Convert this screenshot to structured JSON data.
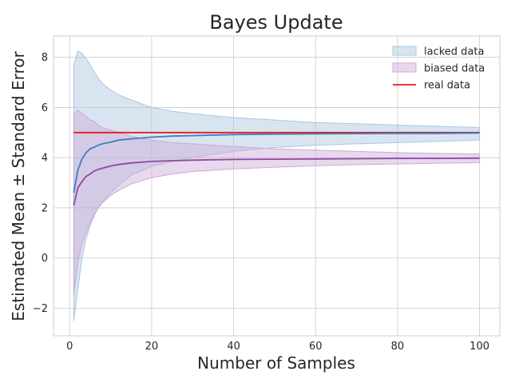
{
  "chart_data": {
    "type": "line",
    "title": "Bayes Update",
    "xlabel": "Number of Samples",
    "ylabel": "Estimated Mean ± Standard Error",
    "xlim": [
      -3.95,
      104.95
    ],
    "ylim": [
      -3.1,
      8.85
    ],
    "xticks": [
      0,
      20,
      40,
      60,
      80,
      100
    ],
    "yticks": [
      -2,
      0,
      2,
      4,
      6,
      8
    ],
    "grid": true,
    "legend_position": "top-right",
    "bands": [
      {
        "name": "lacked data",
        "color": "#a9c6df",
        "x": [
          1,
          2,
          3,
          4,
          5,
          6,
          7,
          8,
          10,
          12,
          15,
          20,
          25,
          30,
          40,
          50,
          60,
          70,
          80,
          90,
          100
        ],
        "upper": [
          7.7,
          8.25,
          8.15,
          7.95,
          7.7,
          7.4,
          7.15,
          6.95,
          6.7,
          6.5,
          6.3,
          6.0,
          5.85,
          5.75,
          5.6,
          5.5,
          5.4,
          5.35,
          5.3,
          5.25,
          5.2
        ],
        "lower": [
          -2.5,
          -1.25,
          0.0,
          0.75,
          1.3,
          1.7,
          2.0,
          2.25,
          2.6,
          2.9,
          3.3,
          3.65,
          3.85,
          4.0,
          4.25,
          4.4,
          4.5,
          4.55,
          4.6,
          4.65,
          4.7
        ]
      },
      {
        "name": "biased data",
        "color": "#cfa8d8",
        "x": [
          1,
          2,
          3,
          4,
          5,
          6,
          7,
          8,
          10,
          12,
          15,
          20,
          25,
          30,
          40,
          50,
          60,
          70,
          80,
          90,
          100
        ],
        "upper": [
          5.75,
          5.9,
          5.75,
          5.65,
          5.5,
          5.45,
          5.3,
          5.2,
          5.1,
          5.0,
          4.85,
          4.7,
          4.6,
          4.55,
          4.45,
          4.35,
          4.3,
          4.25,
          4.2,
          4.17,
          4.15
        ],
        "lower": [
          -1.5,
          -0.15,
          0.55,
          1.0,
          1.4,
          1.75,
          2.0,
          2.2,
          2.5,
          2.7,
          2.95,
          3.2,
          3.35,
          3.45,
          3.55,
          3.62,
          3.68,
          3.72,
          3.75,
          3.78,
          3.8
        ]
      }
    ],
    "series": [
      {
        "name": "real data",
        "color": "#e41a1c",
        "x": [
          1,
          100
        ],
        "values": [
          5.0,
          5.0
        ]
      },
      {
        "name": "",
        "color": "#3f7fbf",
        "x": [
          1,
          2,
          3,
          4,
          5,
          6,
          7,
          8,
          10,
          12,
          15,
          20,
          25,
          30,
          40,
          50,
          60,
          70,
          80,
          90,
          100
        ],
        "values": [
          2.6,
          3.5,
          3.95,
          4.2,
          4.35,
          4.42,
          4.5,
          4.55,
          4.62,
          4.7,
          4.75,
          4.82,
          4.86,
          4.88,
          4.92,
          4.94,
          4.95,
          4.96,
          4.97,
          4.97,
          4.98
        ]
      },
      {
        "name": "",
        "color": "#8e4a9e",
        "x": [
          1,
          2,
          3,
          4,
          5,
          6,
          7,
          8,
          10,
          12,
          15,
          20,
          25,
          30,
          40,
          50,
          60,
          70,
          80,
          90,
          100
        ],
        "values": [
          2.1,
          2.8,
          3.05,
          3.25,
          3.35,
          3.47,
          3.53,
          3.58,
          3.67,
          3.73,
          3.79,
          3.85,
          3.88,
          3.9,
          3.93,
          3.94,
          3.95,
          3.96,
          3.97,
          3.97,
          3.98
        ]
      }
    ]
  }
}
